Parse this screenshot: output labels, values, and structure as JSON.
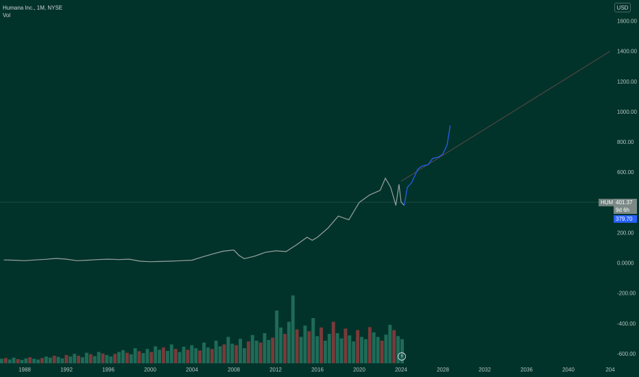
{
  "legend": {
    "symbol_line": "Humana Inc., 1M, NYSE",
    "volume_label": "Vol"
  },
  "price_scale": {
    "currency": "USD",
    "symbol_tag": "HUM",
    "last_price": "401.37",
    "countdown": "9d 6h",
    "close_price": "379.70"
  },
  "events_icon": "lightning-icon",
  "colors": {
    "background": "#02332a",
    "price_line": "#9aa3a1",
    "projection": "#2962ff",
    "trendline": "#5d4a46",
    "vol_up": "#1f6b58",
    "vol_down": "#7a3a3a"
  },
  "chart_data": {
    "type": "line",
    "title": "Humana Inc., 1M, NYSE",
    "xlabel": "",
    "ylabel": "",
    "x_ticks": [
      "1988",
      "1992",
      "1996",
      "2000",
      "2004",
      "2008",
      "2012",
      "2016",
      "2020",
      "2024",
      "2028",
      "2032",
      "2036",
      "2040",
      "204"
    ],
    "y_ticks": [
      "1600.00",
      "1400.00",
      "1200.00",
      "1000.00",
      "800.00",
      "600.00",
      "200.00",
      "0.0000",
      "-200.00",
      "-400.00",
      "-600.00"
    ],
    "xlim": [
      1986,
      2044
    ],
    "ylim": [
      -620,
      1640
    ],
    "grid": false,
    "series": [
      {
        "values": [
          [
            1986,
            20
          ],
          [
            1987,
            18
          ],
          [
            1988,
            15
          ],
          [
            1989,
            20
          ],
          [
            1990,
            24
          ],
          [
            1991,
            30
          ],
          [
            1992,
            25
          ],
          [
            1993,
            15
          ],
          [
            1994,
            18
          ],
          [
            1995,
            22
          ],
          [
            1996,
            25
          ],
          [
            1997,
            22
          ],
          [
            1998,
            25
          ],
          [
            1999,
            12
          ],
          [
            2000,
            8
          ],
          [
            2001,
            10
          ],
          [
            2002,
            12
          ],
          [
            2003,
            15
          ],
          [
            2004,
            18
          ],
          [
            2005,
            40
          ],
          [
            2006,
            60
          ],
          [
            2007,
            78
          ],
          [
            2008,
            85
          ],
          [
            2008.5,
            50
          ],
          [
            2009,
            28
          ],
          [
            2010,
            45
          ],
          [
            2011,
            70
          ],
          [
            2012,
            80
          ],
          [
            2013,
            75
          ],
          [
            2014,
            120
          ],
          [
            2015,
            170
          ],
          [
            2015.5,
            150
          ],
          [
            2016,
            170
          ],
          [
            2017,
            230
          ],
          [
            2018,
            310
          ],
          [
            2019,
            285
          ],
          [
            2020,
            400
          ],
          [
            2021,
            450
          ],
          [
            2022,
            480
          ],
          [
            2022.5,
            560
          ],
          [
            2023,
            500
          ],
          [
            2023.5,
            380
          ],
          [
            2023.8,
            520
          ],
          [
            2024,
            402
          ],
          [
            2024.3,
            380
          ]
        ]
      },
      {
        "values": [
          [
            2024.3,
            380
          ],
          [
            2024.6,
            500
          ],
          [
            2025,
            530
          ],
          [
            2025.6,
            620
          ],
          [
            2026,
            640
          ],
          [
            2026.6,
            650
          ],
          [
            2027,
            690
          ],
          [
            2027.6,
            700
          ],
          [
            2028,
            720
          ],
          [
            2028.4,
            780
          ],
          [
            2028.7,
            910
          ]
        ]
      }
    ],
    "trendline": [
      [
        2024,
        540
      ],
      [
        2044,
        1400
      ]
    ],
    "current_price": 401.37,
    "volume": [
      12,
      14,
      10,
      15,
      11,
      9,
      13,
      16,
      12,
      10,
      14,
      18,
      15,
      20,
      17,
      13,
      22,
      18,
      25,
      20,
      16,
      28,
      24,
      19,
      30,
      26,
      22,
      18,
      25,
      30,
      35,
      28,
      24,
      40,
      32,
      27,
      38,
      30,
      45,
      36,
      42,
      33,
      50,
      38,
      30,
      44,
      36,
      48,
      40,
      34,
      55,
      42,
      38,
      60,
      45,
      50,
      70,
      52,
      48,
      65,
      40,
      58,
      75,
      60,
      55,
      80,
      62,
      68,
      140,
      95,
      78,
      110,
      180,
      90,
      70,
      100,
      85,
      120,
      72,
      95,
      60,
      78,
      110,
      80,
      66,
      92,
      74,
      58,
      88,
      70,
      64,
      96,
      82,
      70,
      60,
      76,
      102,
      88,
      72,
      64
    ]
  }
}
